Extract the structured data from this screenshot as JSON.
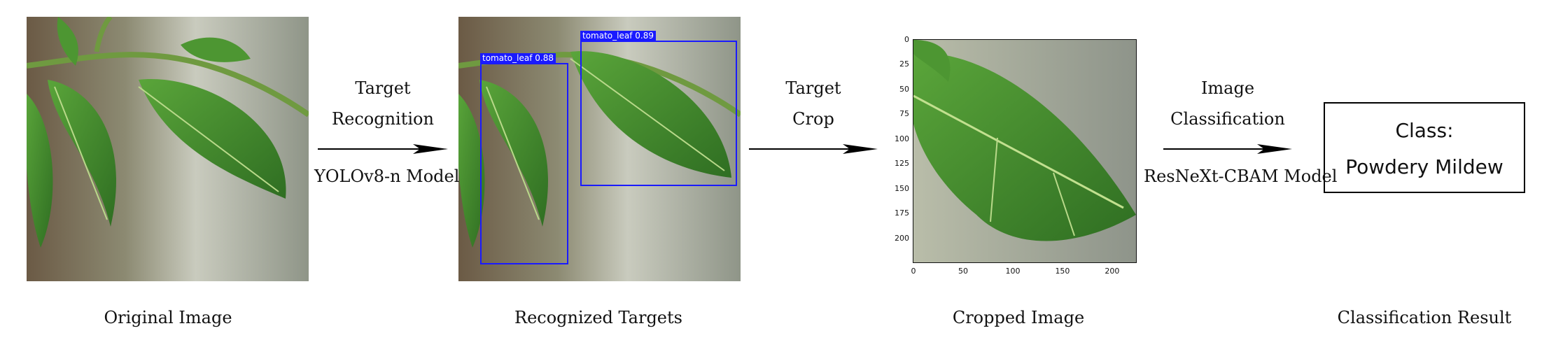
{
  "stages": [
    {
      "caption": "Original Image"
    },
    {
      "caption": "Recognized Targets"
    },
    {
      "caption": "Cropped Image"
    },
    {
      "caption": "Classification Result"
    }
  ],
  "arrows": [
    {
      "top_lines": [
        "Target",
        "Recognition"
      ],
      "bottom": "YOLOv8-n Model"
    },
    {
      "top_lines": [
        "Target",
        "Crop"
      ],
      "bottom": ""
    },
    {
      "top_lines": [
        "Image",
        "Classification"
      ],
      "bottom": "ResNeXt-CBAM Model"
    }
  ],
  "detections": [
    {
      "label": "tomato_leaf  0.88"
    },
    {
      "label": "tomato_leaf  0.89"
    }
  ],
  "crop_axes": {
    "y_ticks": [
      "0",
      "25",
      "50",
      "75",
      "100",
      "125",
      "150",
      "175",
      "200"
    ],
    "x_ticks": [
      "0",
      "50",
      "100",
      "150",
      "200"
    ]
  },
  "result": {
    "line1": "Class:",
    "line2": "Powdery Mildew"
  },
  "colors": {
    "box": "#1a1aff",
    "leaf": "#3f8a2c",
    "background": "#9aa08e"
  }
}
